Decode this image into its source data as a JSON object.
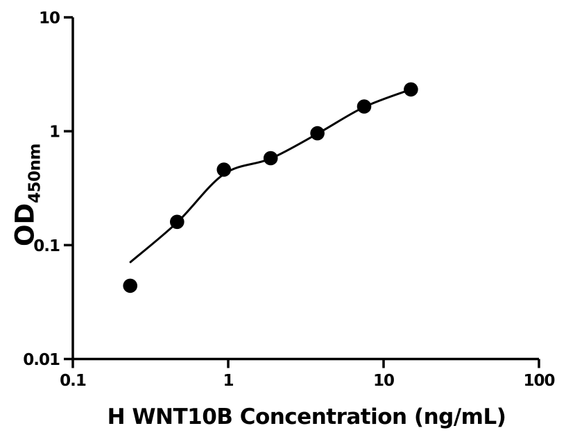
{
  "figure": {
    "background": "#ffffff"
  },
  "chart_data": {
    "type": "scatter",
    "subtype": "ELISA standard curve, log-log axes, filled circles with fitted curve",
    "title": "",
    "xlabel": "H WNT10B Concentration (ng/mL)",
    "ylabel_main": "OD",
    "ylabel_subscript": "450nm",
    "x_scale": "log",
    "y_scale": "log",
    "xlim": [
      0.1,
      100
    ],
    "ylim": [
      0.01,
      10
    ],
    "grid": false,
    "legend_position": "none",
    "x_ticks": [
      {
        "value": 0.1,
        "label": "0.1"
      },
      {
        "value": 1,
        "label": "1"
      },
      {
        "value": 10,
        "label": "10"
      },
      {
        "value": 100,
        "label": "100"
      }
    ],
    "y_ticks": [
      {
        "value": 0.01,
        "label": "0.01"
      },
      {
        "value": 0.1,
        "label": "0.1"
      },
      {
        "value": 1,
        "label": "1"
      },
      {
        "value": 10,
        "label": "10"
      }
    ],
    "points": [
      {
        "x": 0.234,
        "y": 0.044
      },
      {
        "x": 0.469,
        "y": 0.16
      },
      {
        "x": 0.938,
        "y": 0.46
      },
      {
        "x": 1.875,
        "y": 0.58
      },
      {
        "x": 3.75,
        "y": 0.96
      },
      {
        "x": 7.5,
        "y": 1.65
      },
      {
        "x": 15,
        "y": 2.33
      }
    ],
    "fit_curve": [
      {
        "x": 0.235,
        "y": 0.071
      },
      {
        "x": 0.469,
        "y": 0.158
      },
      {
        "x": 0.938,
        "y": 0.42
      },
      {
        "x": 1.875,
        "y": 0.575
      },
      {
        "x": 3.75,
        "y": 0.95
      },
      {
        "x": 7.5,
        "y": 1.63
      },
      {
        "x": 15,
        "y": 2.33
      }
    ],
    "marker_color": "#000000",
    "line_color": "#000000",
    "axis_color": "#000000"
  }
}
